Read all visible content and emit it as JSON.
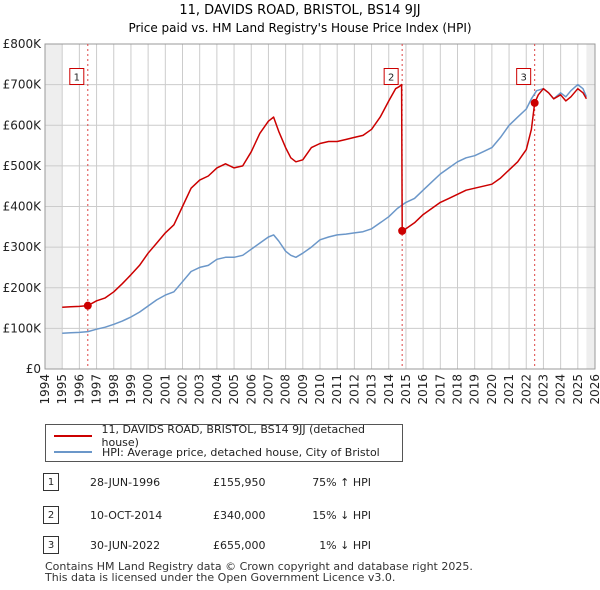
{
  "chart_data": {
    "type": "line",
    "title": "11, DAVIDS ROAD, BRISTOL, BS14 9JJ",
    "subtitle": "Price paid vs. HM Land Registry's House Price Index (HPI)",
    "xlim": [
      1994,
      2026
    ],
    "ylim": [
      0,
      800000
    ],
    "y_ticks": [
      0,
      100000,
      200000,
      300000,
      400000,
      500000,
      600000,
      700000,
      800000
    ],
    "y_tick_labels": [
      "£0",
      "£100K",
      "£200K",
      "£300K",
      "£400K",
      "£500K",
      "£600K",
      "£700K",
      "£800K"
    ],
    "x_ticks": [
      1994,
      1995,
      1996,
      1997,
      1998,
      1999,
      2000,
      2001,
      2002,
      2003,
      2004,
      2005,
      2006,
      2007,
      2008,
      2009,
      2010,
      2011,
      2012,
      2013,
      2014,
      2015,
      2016,
      2017,
      2018,
      2019,
      2020,
      2021,
      2022,
      2023,
      2024,
      2025,
      2026
    ],
    "x_tick_labels": [
      "1994",
      "1995",
      "1996",
      "1997",
      "1998",
      "1999",
      "2000",
      "2001",
      "2002",
      "2003",
      "2004",
      "2005",
      "2006",
      "2007",
      "2008",
      "2009",
      "2010",
      "2011",
      "2012",
      "2013",
      "2014",
      "2015",
      "2016",
      "2017",
      "2018",
      "2019",
      "2020",
      "2021",
      "2022",
      "2023",
      "2024",
      "2025",
      "2026"
    ],
    "series": [
      {
        "name": "11, DAVIDS ROAD, BRISTOL, BS14 9JJ (detached house)",
        "color": "#cc0000",
        "x": [
          1995.0,
          1995.5,
          1996.0,
          1996.49,
          1997.0,
          1997.5,
          1998.0,
          1998.5,
          1999.0,
          1999.5,
          2000.0,
          2000.5,
          2001.0,
          2001.5,
          2002.0,
          2002.5,
          2003.0,
          2003.5,
          2004.0,
          2004.5,
          2005.0,
          2005.5,
          2006.0,
          2006.5,
          2007.0,
          2007.3,
          2007.6,
          2008.0,
          2008.3,
          2008.6,
          2009.0,
          2009.5,
          2010.0,
          2010.5,
          2011.0,
          2011.5,
          2012.0,
          2012.5,
          2013.0,
          2013.5,
          2014.0,
          2014.4,
          2014.6,
          2014.75,
          2014.78,
          2015.0,
          2015.5,
          2016.0,
          2016.5,
          2017.0,
          2017.5,
          2018.0,
          2018.5,
          2019.0,
          2019.5,
          2020.0,
          2020.5,
          2021.0,
          2021.5,
          2022.0,
          2022.3,
          2022.49,
          2022.7,
          2023.0,
          2023.3,
          2023.6,
          2024.0,
          2024.3,
          2024.6,
          2025.0,
          2025.3,
          2025.5
        ],
        "values": [
          152000,
          153000,
          154000,
          155950,
          168000,
          175000,
          190000,
          210000,
          232000,
          255000,
          285000,
          310000,
          335000,
          355000,
          400000,
          445000,
          465000,
          475000,
          495000,
          505000,
          495000,
          500000,
          535000,
          580000,
          610000,
          620000,
          585000,
          545000,
          520000,
          510000,
          515000,
          545000,
          555000,
          560000,
          560000,
          565000,
          570000,
          575000,
          590000,
          620000,
          660000,
          690000,
          695000,
          700000,
          340000,
          345000,
          360000,
          380000,
          395000,
          410000,
          420000,
          430000,
          440000,
          445000,
          450000,
          455000,
          470000,
          490000,
          510000,
          540000,
          590000,
          655000,
          675000,
          690000,
          680000,
          665000,
          675000,
          660000,
          670000,
          690000,
          680000,
          665000
        ]
      },
      {
        "name": "HPI: Average price, detached house, City of Bristol",
        "color": "#6b97c9",
        "x": [
          1995.0,
          1995.5,
          1996.0,
          1996.5,
          1997.0,
          1997.5,
          1998.0,
          1998.5,
          1999.0,
          1999.5,
          2000.0,
          2000.5,
          2001.0,
          2001.5,
          2002.0,
          2002.5,
          2003.0,
          2003.5,
          2004.0,
          2004.5,
          2005.0,
          2005.5,
          2006.0,
          2006.5,
          2007.0,
          2007.3,
          2007.6,
          2008.0,
          2008.3,
          2008.6,
          2009.0,
          2009.5,
          2010.0,
          2010.5,
          2011.0,
          2011.5,
          2012.0,
          2012.5,
          2013.0,
          2013.5,
          2014.0,
          2014.5,
          2015.0,
          2015.5,
          2016.0,
          2016.5,
          2017.0,
          2017.5,
          2018.0,
          2018.5,
          2019.0,
          2019.5,
          2020.0,
          2020.5,
          2021.0,
          2021.5,
          2022.0,
          2022.3,
          2022.6,
          2023.0,
          2023.3,
          2023.6,
          2024.0,
          2024.3,
          2024.6,
          2025.0,
          2025.3,
          2025.5
        ],
        "values": [
          88000,
          89000,
          90000,
          92000,
          98000,
          103000,
          110000,
          118000,
          128000,
          140000,
          155000,
          170000,
          182000,
          190000,
          215000,
          240000,
          250000,
          255000,
          270000,
          275000,
          275000,
          280000,
          295000,
          310000,
          325000,
          330000,
          315000,
          290000,
          280000,
          275000,
          285000,
          300000,
          318000,
          325000,
          330000,
          332000,
          335000,
          338000,
          345000,
          360000,
          375000,
          395000,
          410000,
          420000,
          440000,
          460000,
          480000,
          495000,
          510000,
          520000,
          525000,
          535000,
          545000,
          570000,
          600000,
          620000,
          640000,
          665000,
          685000,
          690000,
          680000,
          665000,
          680000,
          670000,
          685000,
          700000,
          690000,
          670000
        ]
      }
    ],
    "sales": [
      {
        "label": "1",
        "x": 1996.49,
        "y": 155950
      },
      {
        "label": "2",
        "x": 2014.78,
        "y": 340000
      },
      {
        "label": "3",
        "x": 2022.49,
        "y": 655000
      }
    ]
  },
  "legend": [
    {
      "label": "11, DAVIDS ROAD, BRISTOL, BS14 9JJ (detached house)",
      "color": "#cc0000"
    },
    {
      "label": "HPI: Average price, detached house, City of Bristol",
      "color": "#6b97c9"
    }
  ],
  "sales_table": [
    {
      "num": "1",
      "date": "28-JUN-1996",
      "price": "£155,950",
      "hpi": "75% ↑ HPI"
    },
    {
      "num": "2",
      "date": "10-OCT-2014",
      "price": "£340,000",
      "hpi": "15% ↓ HPI"
    },
    {
      "num": "3",
      "date": "30-JUN-2022",
      "price": "£655,000",
      "hpi": "1% ↓ HPI"
    }
  ],
  "footer": {
    "line1": "Contains HM Land Registry data © Crown copyright and database right 2025.",
    "line2": "This data is licensed under the Open Government Licence v3.0."
  }
}
